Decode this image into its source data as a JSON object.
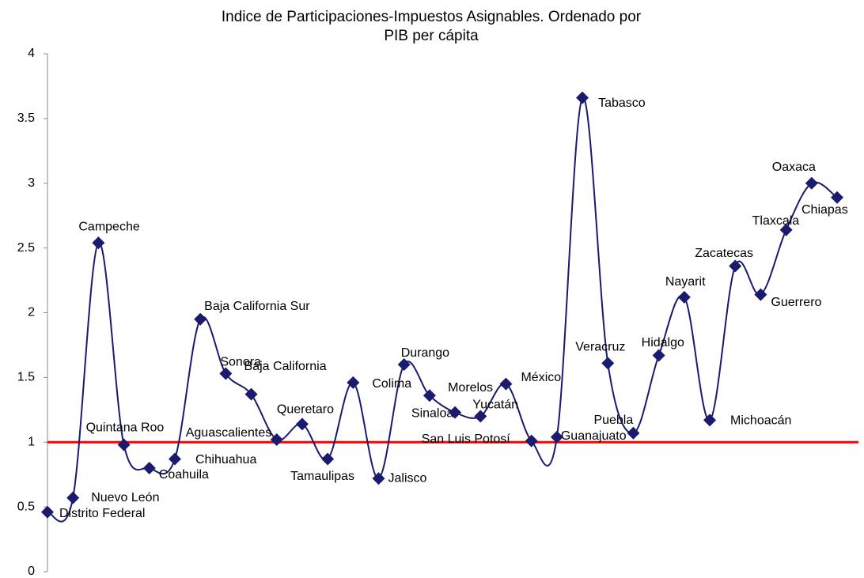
{
  "chart_data": {
    "type": "line",
    "title": "Indice de Participaciones-Impuestos Asignables. Ordenado por PIB per cápita",
    "categories": [
      "Distrito Federal",
      "Nuevo León",
      "Campeche",
      "Quintana Roo",
      "Coahuila",
      "Chihuahua",
      "Baja California Sur",
      "Sonora",
      "Baja California",
      "Aguascalientes",
      "Queretaro",
      "Tamaulipas",
      "Colima",
      "Jalisco",
      "Durango",
      "Sinaloa",
      "Morelos",
      "Yucatán",
      "México",
      "San Luis Potosí",
      "Guanajuato",
      "Tabasco",
      "Veracruz",
      "Puebla",
      "Hidalgo",
      "Nayarit",
      "Michoacán",
      "Zacatecas",
      "Guerrero",
      "Tlaxcala",
      "Oaxaca",
      "Chiapas"
    ],
    "values": [
      0.46,
      0.57,
      2.54,
      0.98,
      0.8,
      0.87,
      1.95,
      1.53,
      1.37,
      1.02,
      1.14,
      0.87,
      1.46,
      0.72,
      1.6,
      1.36,
      1.23,
      1.2,
      1.45,
      1.01,
      1.04,
      3.66,
      1.61,
      1.07,
      1.67,
      2.12,
      1.17,
      2.36,
      2.14,
      2.64,
      3.0,
      2.89
    ],
    "color": "#1a1a6e",
    "reference_line": {
      "value": 1,
      "color": "#ff0000"
    },
    "ylim": [
      0,
      4
    ],
    "yticks": [
      0,
      0.5,
      1,
      1.5,
      2,
      2.5,
      3,
      3.5,
      4
    ]
  }
}
